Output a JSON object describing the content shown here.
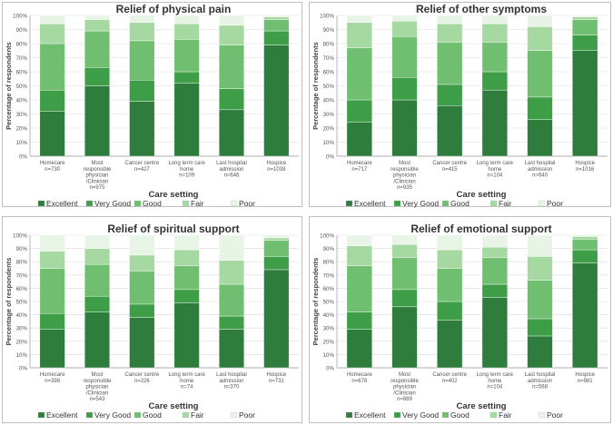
{
  "shared": {
    "xlabel": "Care setting",
    "ylabel": "Percentage of respondents",
    "legend": [
      "Excellent",
      "Very Good",
      "Good",
      "Fair",
      "Poor"
    ],
    "colors": [
      "#2e7d3c",
      "#3e9e48",
      "#70bf70",
      "#a6d9a1",
      "#e8f5e6"
    ],
    "yticks": [
      "0%",
      "10%",
      "20%",
      "30%",
      "40%",
      "50%",
      "60%",
      "70%",
      "80%",
      "90%",
      "100%"
    ]
  },
  "chart_data": [
    {
      "type": "bar",
      "stacked": true,
      "title": "Relief of physical pain",
      "xlabel": "Care setting",
      "ylabel": "Percentage of respondents",
      "ylim": [
        0,
        100
      ],
      "categories": [
        [
          "Homecare",
          "n=730"
        ],
        [
          "Most",
          "responsible",
          "physician",
          "/Clinician",
          "n=975"
        ],
        [
          "Cancer centre",
          "n=427"
        ],
        [
          "Long term care",
          "home",
          "n=109"
        ],
        [
          "Last hospital",
          "admission",
          "n=646"
        ],
        [
          "Hospice",
          "n=1038"
        ]
      ],
      "series": [
        {
          "name": "Excellent",
          "values": [
            32,
            50,
            39,
            52,
            33,
            79
          ]
        },
        {
          "name": "Very Good",
          "values": [
            15,
            13,
            15,
            8,
            15,
            10
          ]
        },
        {
          "name": "Good",
          "values": [
            33,
            26,
            28,
            23,
            31,
            8
          ]
        },
        {
          "name": "Fair",
          "values": [
            14,
            8,
            13,
            11,
            14,
            2
          ]
        },
        {
          "name": "Poor",
          "values": [
            6,
            3,
            5,
            6,
            7,
            1
          ]
        }
      ]
    },
    {
      "type": "bar",
      "stacked": true,
      "title": "Relief of other symptoms",
      "xlabel": "Care setting",
      "ylabel": "Percentage of respondents",
      "ylim": [
        0,
        100
      ],
      "categories": [
        [
          "Homecare",
          "n=717"
        ],
        [
          "Most",
          "responsible",
          "physician",
          "/Clinician",
          "n=935"
        ],
        [
          "Cancer centre",
          "n=415"
        ],
        [
          "Long term care",
          "home",
          "n=104"
        ],
        [
          "Last hospital",
          "admission",
          "n=640"
        ],
        [
          "Hospice",
          "n=1016"
        ]
      ],
      "series": [
        {
          "name": "Excellent",
          "values": [
            24,
            40,
            36,
            47,
            26,
            75
          ]
        },
        {
          "name": "Very Good",
          "values": [
            16,
            16,
            15,
            13,
            16,
            11
          ]
        },
        {
          "name": "Good",
          "values": [
            37,
            29,
            30,
            21,
            33,
            11
          ]
        },
        {
          "name": "Fair",
          "values": [
            18,
            11,
            13,
            13,
            17,
            2
          ]
        },
        {
          "name": "Poor",
          "values": [
            5,
            4,
            6,
            6,
            8,
            1
          ]
        }
      ]
    },
    {
      "type": "bar",
      "stacked": true,
      "title": "Relief of spiritual support",
      "xlabel": "Care setting",
      "ylabel": "Percentage of respondents",
      "ylim": [
        0,
        100
      ],
      "categories": [
        [
          "Homecare",
          "n=398"
        ],
        [
          "Most",
          "responsible",
          "physician",
          "/Clinician",
          "n=543"
        ],
        [
          "Cancer centre",
          "n=226"
        ],
        [
          "Long term care",
          "home",
          "n=74"
        ],
        [
          "Last hospital",
          "admission",
          "n=370"
        ],
        [
          "Hospice",
          "n=731"
        ]
      ],
      "series": [
        {
          "name": "Excellent",
          "values": [
            29,
            42,
            38,
            49,
            29,
            74
          ]
        },
        {
          "name": "Very Good",
          "values": [
            12,
            12,
            10,
            10,
            10,
            10
          ]
        },
        {
          "name": "Good",
          "values": [
            34,
            24,
            25,
            18,
            24,
            12
          ]
        },
        {
          "name": "Fair",
          "values": [
            13,
            12,
            12,
            12,
            18,
            2
          ]
        },
        {
          "name": "Poor",
          "values": [
            12,
            10,
            15,
            11,
            19,
            2
          ]
        }
      ]
    },
    {
      "type": "bar",
      "stacked": true,
      "title": "Relief of emotional support",
      "xlabel": "Care setting",
      "ylabel": "Percentage of respondents",
      "ylim": [
        0,
        100
      ],
      "categories": [
        [
          "Homecare",
          "n=678"
        ],
        [
          "Most",
          "responsible",
          "physician",
          "/Clinician",
          "n=889"
        ],
        [
          "Cancer centre",
          "n=402"
        ],
        [
          "Long term care",
          "home",
          "n=104"
        ],
        [
          "Last hospital",
          "admission",
          "n=568"
        ],
        [
          "Hospice",
          "n=981"
        ]
      ],
      "series": [
        {
          "name": "Excellent",
          "values": [
            29,
            46,
            36,
            53,
            24,
            79
          ]
        },
        {
          "name": "Very Good",
          "values": [
            13,
            13,
            14,
            10,
            13,
            10
          ]
        },
        {
          "name": "Good",
          "values": [
            35,
            24,
            25,
            20,
            29,
            8
          ]
        },
        {
          "name": "Fair",
          "values": [
            15,
            10,
            14,
            8,
            18,
            2
          ]
        },
        {
          "name": "Poor",
          "values": [
            8,
            7,
            11,
            9,
            16,
            1
          ]
        }
      ]
    }
  ]
}
